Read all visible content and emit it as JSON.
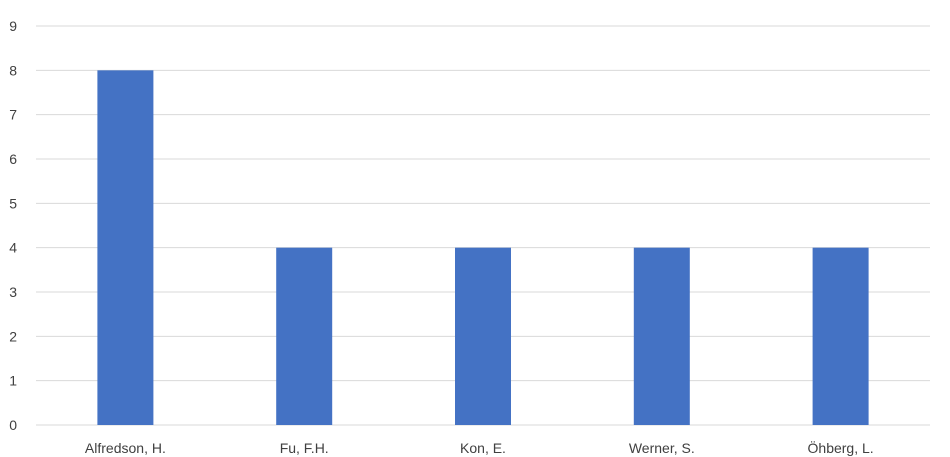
{
  "chart_data": {
    "type": "bar",
    "categories": [
      "Alfredson, H.",
      "Fu, F.H.",
      "Kon, E.",
      "Werner, S.",
      "Öhberg, L."
    ],
    "values": [
      8,
      4,
      4,
      4,
      4
    ],
    "ylim": [
      0,
      9
    ],
    "yticks": [
      0,
      1,
      2,
      3,
      4,
      5,
      6,
      7,
      8,
      9
    ],
    "grid": true,
    "colors": {
      "bar": "#4472c4",
      "grid": "#d9d9d9",
      "text": "#404040"
    }
  }
}
